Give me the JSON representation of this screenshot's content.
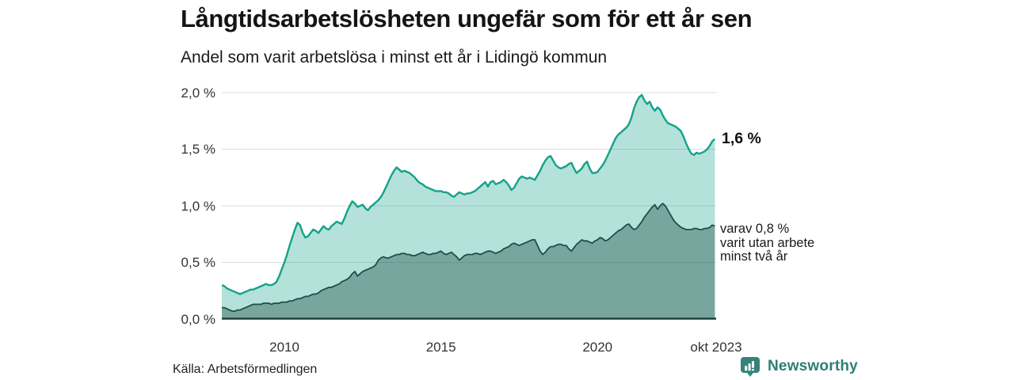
{
  "header": {
    "title": "Långtidsarbetslösheten ungefär som för ett år sen",
    "subtitle": "Andel som varit arbetslösa i minst ett år i Lidingö kommun"
  },
  "chart_data": {
    "type": "area",
    "title": "Långtidsarbetslösheten ungefär som för ett år sen",
    "subtitle": "Andel som varit arbetslösa i minst ett år i Lidingö kommun",
    "x_start_year": 2008,
    "points_per_year": 12,
    "x_end_label": "okt 2023",
    "ylim": [
      0,
      2.0
    ],
    "grid": true,
    "grid_color": "#dcdcdc",
    "axis_color": "#21403b",
    "y_ticks": [
      {
        "value": 0.0,
        "label": "0,0 %"
      },
      {
        "value": 0.5,
        "label": "0,5 %"
      },
      {
        "value": 1.0,
        "label": "1,0 %"
      },
      {
        "value": 1.5,
        "label": "1,5 %"
      },
      {
        "value": 2.0,
        "label": "2,0 %"
      }
    ],
    "x_ticks": [
      {
        "t": 2010.0,
        "label": "2010"
      },
      {
        "t": 2015.0,
        "label": "2015"
      },
      {
        "t": 2020.0,
        "label": "2020"
      },
      {
        "t": 2023.79,
        "label": "okt 2023"
      }
    ],
    "series": [
      {
        "name": "Arbetslösa minst ett år",
        "line_color": "#13a28a",
        "fill_color": "rgba(26,163,141,0.33)",
        "line_width": 2.4,
        "last_value_label": "1,6 %",
        "values": [
          0.3,
          0.29,
          0.27,
          0.26,
          0.25,
          0.24,
          0.23,
          0.22,
          0.23,
          0.24,
          0.25,
          0.26,
          0.26,
          0.27,
          0.28,
          0.29,
          0.3,
          0.31,
          0.3,
          0.3,
          0.31,
          0.33,
          0.38,
          0.44,
          0.5,
          0.57,
          0.65,
          0.72,
          0.79,
          0.85,
          0.83,
          0.76,
          0.72,
          0.73,
          0.76,
          0.79,
          0.78,
          0.76,
          0.79,
          0.82,
          0.8,
          0.79,
          0.82,
          0.84,
          0.86,
          0.85,
          0.84,
          0.89,
          0.95,
          1.0,
          1.04,
          1.02,
          0.99,
          1.0,
          1.01,
          0.98,
          0.96,
          0.99,
          1.01,
          1.03,
          1.05,
          1.08,
          1.12,
          1.17,
          1.22,
          1.27,
          1.31,
          1.34,
          1.32,
          1.3,
          1.31,
          1.3,
          1.29,
          1.27,
          1.25,
          1.22,
          1.2,
          1.19,
          1.17,
          1.16,
          1.15,
          1.14,
          1.13,
          1.13,
          1.13,
          1.12,
          1.12,
          1.11,
          1.09,
          1.08,
          1.1,
          1.12,
          1.11,
          1.1,
          1.11,
          1.11,
          1.12,
          1.13,
          1.15,
          1.17,
          1.19,
          1.21,
          1.17,
          1.21,
          1.22,
          1.19,
          1.2,
          1.21,
          1.23,
          1.21,
          1.18,
          1.14,
          1.16,
          1.2,
          1.24,
          1.26,
          1.25,
          1.24,
          1.25,
          1.24,
          1.23,
          1.27,
          1.31,
          1.36,
          1.4,
          1.43,
          1.44,
          1.4,
          1.36,
          1.34,
          1.33,
          1.34,
          1.35,
          1.37,
          1.38,
          1.33,
          1.29,
          1.31,
          1.33,
          1.37,
          1.39,
          1.33,
          1.29,
          1.29,
          1.3,
          1.33,
          1.36,
          1.4,
          1.45,
          1.5,
          1.55,
          1.6,
          1.63,
          1.65,
          1.67,
          1.69,
          1.72,
          1.78,
          1.86,
          1.92,
          1.96,
          1.98,
          1.93,
          1.9,
          1.92,
          1.87,
          1.84,
          1.87,
          1.85,
          1.8,
          1.76,
          1.73,
          1.72,
          1.71,
          1.7,
          1.68,
          1.66,
          1.61,
          1.55,
          1.5,
          1.46,
          1.45,
          1.47,
          1.46,
          1.47,
          1.48,
          1.5,
          1.53,
          1.57,
          1.59
        ]
      },
      {
        "name": "Arbetslösa minst två år",
        "line_color": "#1d4f48",
        "fill_color": "rgba(30,77,71,0.40)",
        "line_width": 1.8,
        "last_value_label": "0,8 %",
        "values": [
          0.1,
          0.1,
          0.09,
          0.08,
          0.07,
          0.07,
          0.08,
          0.08,
          0.09,
          0.1,
          0.11,
          0.12,
          0.13,
          0.13,
          0.13,
          0.13,
          0.14,
          0.14,
          0.14,
          0.13,
          0.14,
          0.14,
          0.14,
          0.15,
          0.15,
          0.15,
          0.16,
          0.16,
          0.17,
          0.18,
          0.18,
          0.19,
          0.2,
          0.2,
          0.21,
          0.22,
          0.22,
          0.23,
          0.25,
          0.26,
          0.27,
          0.28,
          0.28,
          0.29,
          0.3,
          0.31,
          0.33,
          0.34,
          0.35,
          0.37,
          0.4,
          0.42,
          0.38,
          0.4,
          0.42,
          0.43,
          0.44,
          0.45,
          0.46,
          0.48,
          0.52,
          0.54,
          0.55,
          0.54,
          0.54,
          0.55,
          0.56,
          0.57,
          0.57,
          0.58,
          0.58,
          0.57,
          0.57,
          0.56,
          0.56,
          0.57,
          0.58,
          0.59,
          0.58,
          0.57,
          0.57,
          0.58,
          0.58,
          0.59,
          0.6,
          0.58,
          0.57,
          0.58,
          0.59,
          0.57,
          0.55,
          0.52,
          0.54,
          0.56,
          0.57,
          0.57,
          0.57,
          0.58,
          0.58,
          0.57,
          0.58,
          0.59,
          0.6,
          0.6,
          0.59,
          0.58,
          0.59,
          0.6,
          0.62,
          0.63,
          0.64,
          0.66,
          0.67,
          0.66,
          0.65,
          0.66,
          0.67,
          0.68,
          0.69,
          0.7,
          0.7,
          0.65,
          0.6,
          0.57,
          0.59,
          0.62,
          0.64,
          0.64,
          0.65,
          0.66,
          0.66,
          0.65,
          0.65,
          0.62,
          0.6,
          0.63,
          0.66,
          0.68,
          0.7,
          0.69,
          0.69,
          0.68,
          0.67,
          0.69,
          0.7,
          0.72,
          0.71,
          0.69,
          0.7,
          0.72,
          0.74,
          0.76,
          0.78,
          0.79,
          0.81,
          0.83,
          0.84,
          0.81,
          0.79,
          0.8,
          0.83,
          0.86,
          0.9,
          0.93,
          0.96,
          0.99,
          1.01,
          0.97,
          1.0,
          1.02,
          1.0,
          0.96,
          0.92,
          0.88,
          0.85,
          0.83,
          0.81,
          0.8,
          0.79,
          0.79,
          0.79,
          0.8,
          0.8,
          0.79,
          0.79,
          0.8,
          0.8,
          0.81,
          0.83,
          0.82
        ]
      }
    ],
    "legend_position": "none"
  },
  "annotations": {
    "total_label": "1,6 %",
    "subset_line1": "varav 0,8 %",
    "subset_line2": "varit utan arbete",
    "subset_line3": "minst två år"
  },
  "footer": {
    "source": "Källa: Arbetsförmedlingen",
    "brand": "Newsworthy",
    "brand_icon_color": "#37827b",
    "brand_text_color": "#2f7d75"
  }
}
